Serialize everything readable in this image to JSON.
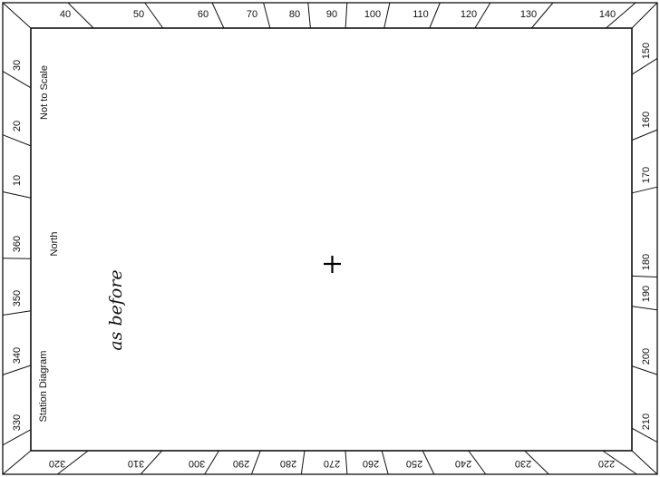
{
  "diagram": {
    "side_labels": {
      "scale": "Not to Scale",
      "north": "North",
      "title": "Station Diagram"
    },
    "handwritten_note": "as before",
    "ticks": {
      "top": [
        "40",
        "50",
        "60",
        "70",
        "80",
        "90",
        "100",
        "110",
        "120",
        "130",
        "140"
      ],
      "right": [
        "150",
        "160",
        "170",
        "180",
        "190",
        "200",
        "210"
      ],
      "bottom": [
        "320",
        "310",
        "300",
        "290",
        "280",
        "270",
        "260",
        "250",
        "240",
        "230",
        "220"
      ],
      "left": [
        "30",
        "20",
        "10",
        "360",
        "350",
        "340",
        "330"
      ]
    }
  }
}
